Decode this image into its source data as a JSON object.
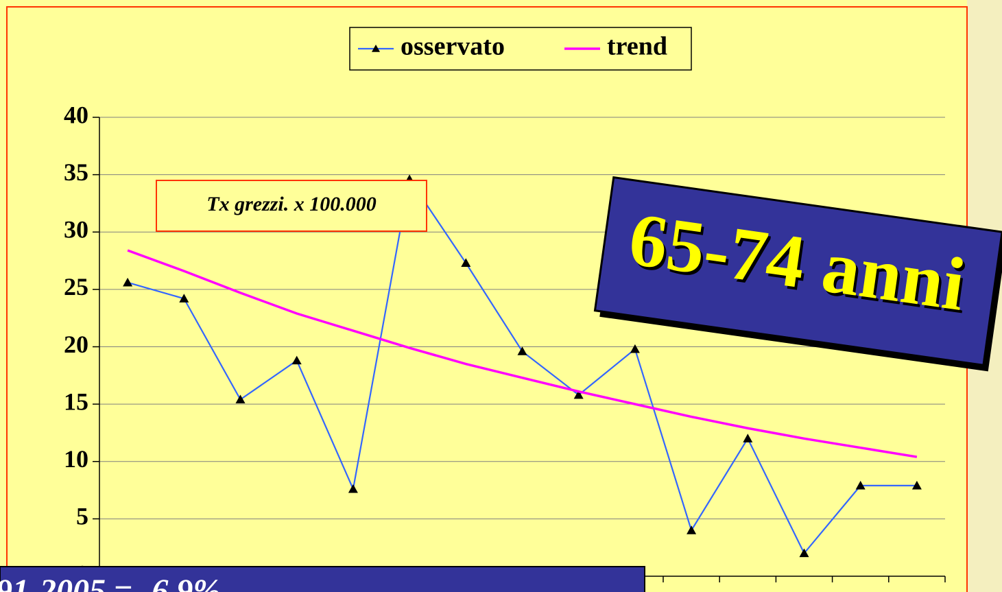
{
  "chart_data": {
    "type": "line",
    "categories": [
      null,
      null,
      null,
      null,
      null,
      null,
      null,
      null,
      null,
      null,
      null,
      null,
      null,
      null,
      null
    ],
    "series": [
      {
        "name": "osservato",
        "color": "#3366ff",
        "marker": "triangle",
        "values": [
          25.6,
          24.2,
          15.4,
          18.8,
          7.6,
          34.6,
          27.3,
          19.6,
          15.8,
          19.8,
          4.0,
          12.0,
          2.0,
          7.9,
          7.9
        ]
      },
      {
        "name": "trend",
        "color": "#ff00ff",
        "values": [
          28.4,
          26.6,
          24.7,
          22.9,
          21.4,
          19.9,
          18.5,
          17.3,
          16.1,
          15.0,
          13.9,
          12.9,
          12.0,
          11.2,
          10.4
        ]
      }
    ],
    "ylim": [
      0,
      40
    ],
    "yticks": [
      0,
      5,
      10,
      15,
      20,
      25,
      30,
      35,
      40
    ],
    "grid": true,
    "legend": "top",
    "annotation": "Tx grezzi. x 100.000",
    "badge": "65-74 anni",
    "footer_note": "91-2005 = -6,9%"
  }
}
